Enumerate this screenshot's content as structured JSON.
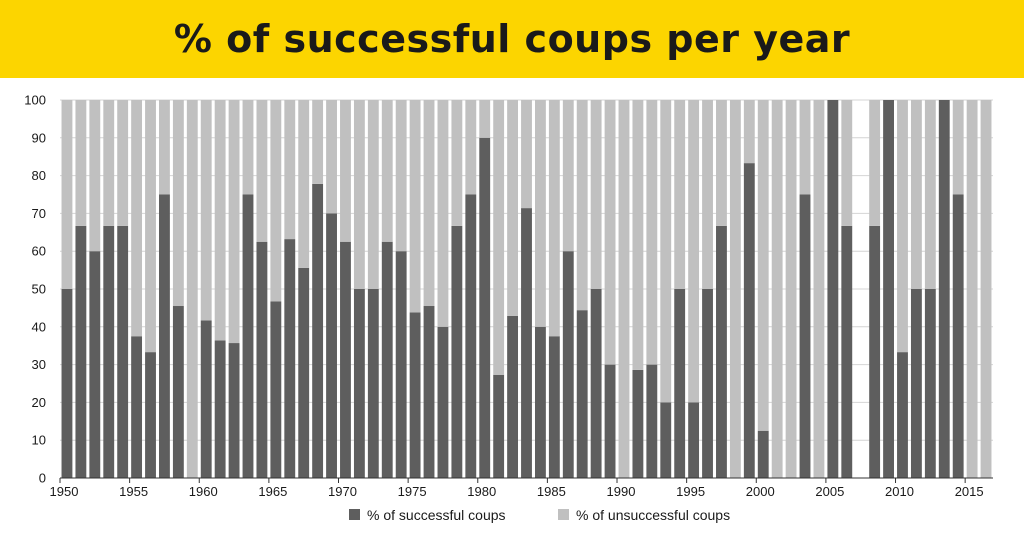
{
  "colors": {
    "banner": "#fcd500",
    "successful": "#5e5e5e",
    "unsuccessful": "#c0c0c0",
    "grid": "#d4d4d4",
    "axis": "#333333"
  },
  "chart_data": {
    "type": "bar",
    "stacked": true,
    "title": "% of successful coups per year",
    "xlabel": "",
    "ylabel": "",
    "ylim": [
      0,
      100
    ],
    "yticks": [
      0,
      10,
      20,
      30,
      40,
      50,
      60,
      70,
      80,
      90,
      100
    ],
    "xticks": [
      1950,
      1955,
      1960,
      1965,
      1970,
      1975,
      1980,
      1985,
      1990,
      1995,
      2000,
      2005,
      2010,
      2015
    ],
    "grid": true,
    "legend_position": "bottom",
    "x": [
      1950,
      1951,
      1952,
      1953,
      1954,
      1955,
      1956,
      1957,
      1958,
      1959,
      1960,
      1961,
      1962,
      1963,
      1964,
      1965,
      1966,
      1967,
      1968,
      1969,
      1970,
      1971,
      1972,
      1973,
      1974,
      1975,
      1976,
      1977,
      1978,
      1979,
      1980,
      1981,
      1982,
      1983,
      1984,
      1985,
      1986,
      1987,
      1988,
      1989,
      1990,
      1991,
      1992,
      1993,
      1994,
      1995,
      1996,
      1997,
      1998,
      1999,
      2000,
      2001,
      2002,
      2003,
      2004,
      2005,
      2006,
      2007,
      2008,
      2009,
      2010,
      2011,
      2012,
      2013,
      2014,
      2015,
      2016
    ],
    "series": [
      {
        "name": "% of successful coups",
        "values": [
          50,
          66.7,
          60,
          66.7,
          66.7,
          37.5,
          33.3,
          75,
          45.5,
          0,
          41.7,
          36.4,
          35.7,
          75,
          62.5,
          46.7,
          63.2,
          55.6,
          77.8,
          70,
          62.5,
          50,
          50,
          62.5,
          60,
          43.8,
          45.5,
          40,
          66.7,
          75,
          90,
          27.3,
          42.9,
          71.4,
          40,
          37.5,
          60,
          44.4,
          50,
          30,
          0,
          28.6,
          30,
          20,
          50,
          20,
          50,
          66.7,
          0,
          83.3,
          12.5,
          0,
          0,
          75,
          0,
          100,
          66.7,
          null,
          66.7,
          100,
          33.3,
          50,
          50,
          100,
          75,
          0,
          0
        ]
      },
      {
        "name": "% of unsuccessful coups",
        "values": [
          50,
          33.3,
          40,
          33.3,
          33.3,
          62.5,
          66.7,
          25,
          54.5,
          100,
          58.3,
          63.6,
          64.3,
          25,
          37.5,
          53.3,
          36.8,
          44.4,
          22.2,
          30,
          37.5,
          50,
          50,
          37.5,
          40,
          56.2,
          54.5,
          60,
          33.3,
          25,
          10,
          72.7,
          57.1,
          28.6,
          60,
          62.5,
          40,
          55.6,
          50,
          70,
          100,
          71.4,
          70,
          80,
          50,
          80,
          50,
          33.3,
          100,
          16.7,
          87.5,
          100,
          100,
          25,
          100,
          0,
          33.3,
          null,
          33.3,
          0,
          66.7,
          50,
          50,
          0,
          25,
          100,
          100
        ]
      }
    ]
  }
}
